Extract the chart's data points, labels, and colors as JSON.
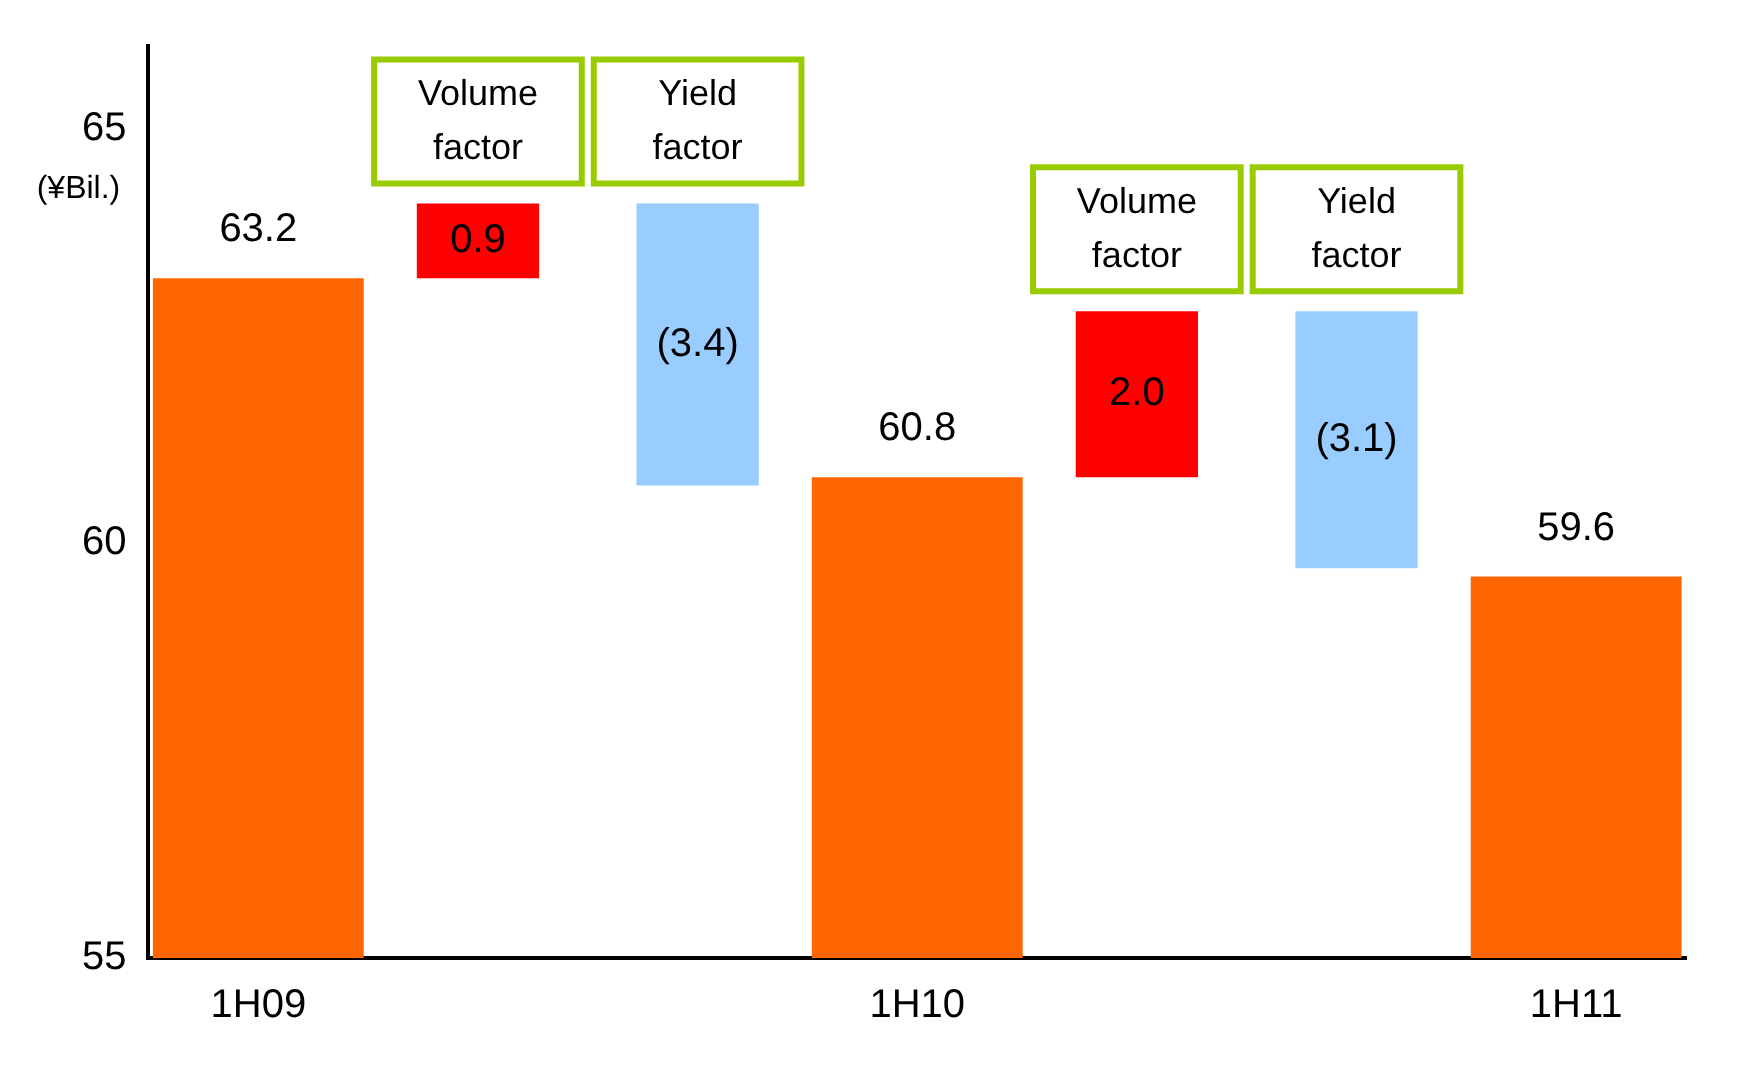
{
  "chart_data": {
    "type": "bar",
    "ylabel": "(¥Bil.)",
    "categories": [
      "1H09",
      null,
      null,
      "1H10",
      null,
      null,
      "1H11"
    ],
    "series": [
      {
        "color": "#ff6600",
        "values": [
          63.2,
          null,
          null,
          60.8,
          null,
          null,
          59.6
        ],
        "value_labels": [
          "63.2",
          null,
          null,
          "60.8",
          null,
          null,
          "59.6"
        ]
      },
      {
        "colors": [
          null,
          "#ff0000",
          "#99ccff",
          null,
          "#ff0000",
          "#99ccff",
          null
        ],
        "base": [
          null,
          63.2,
          64.1,
          null,
          60.8,
          62.8,
          null
        ],
        "values": [
          null,
          0.9,
          -3.4,
          null,
          2.0,
          -3.1,
          null
        ],
        "value_labels": [
          null,
          "0.9",
          "(3.4)",
          null,
          "2.0",
          "(3.1)",
          null
        ]
      }
    ],
    "annotations": [
      "Volume factor",
      "Yield factor",
      "Volume factor",
      "Yield factor"
    ],
    "ylim": [
      55,
      66
    ],
    "yticks": [
      55,
      60,
      65
    ],
    "grid": false,
    "legend": false
  }
}
